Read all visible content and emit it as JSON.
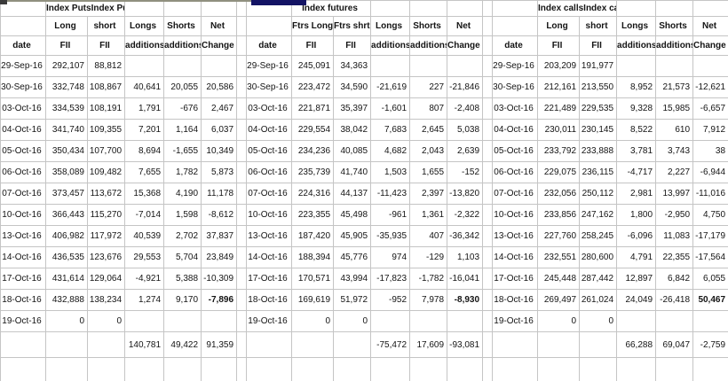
{
  "styles": {
    "header_blue": "#1c1cc4",
    "negative_red": "#e23333",
    "bold_negative_red": "#cc0000",
    "bold_positive_blue": "#1c1cc4",
    "grid_line": "#c5c5c5",
    "navy_bar": "#131364"
  },
  "groups": [
    {
      "id": "index-puts",
      "title": "Index PutsIndex Puts",
      "header_row1": [
        "",
        "Long",
        "short",
        "Longs",
        "Shorts",
        "Net"
      ],
      "header_row2": [
        "date",
        "FII",
        "FII",
        "additions",
        "additions",
        "Change"
      ],
      "rows": [
        [
          "29-Sep-16",
          "292,107",
          "88,812",
          "",
          "",
          ""
        ],
        [
          "30-Sep-16",
          "332,748",
          "108,867",
          "40,641",
          "20,055",
          "20,586"
        ],
        [
          "03-Oct-16",
          "334,539",
          "108,191",
          "1,791",
          "-676",
          "2,467"
        ],
        [
          "04-Oct-16",
          "341,740",
          "109,355",
          "7,201",
          "1,164",
          "6,037"
        ],
        [
          "05-Oct-16",
          "350,434",
          "107,700",
          "8,694",
          "-1,655",
          "10,349"
        ],
        [
          "06-Oct-16",
          "358,089",
          "109,482",
          "7,655",
          "1,782",
          "5,873"
        ],
        [
          "07-Oct-16",
          "373,457",
          "113,672",
          "15,368",
          "4,190",
          "11,178"
        ],
        [
          "10-Oct-16",
          "366,443",
          "115,270",
          "-7,014",
          "1,598",
          "-8,612"
        ],
        [
          "13-Oct-16",
          "406,982",
          "117,972",
          "40,539",
          "2,702",
          "37,837"
        ],
        [
          "14-Oct-16",
          "436,535",
          "123,676",
          "29,553",
          "5,704",
          "23,849"
        ],
        [
          "17-Oct-16",
          "431,614",
          "129,064",
          "-4,921",
          "5,388",
          "-10,309"
        ],
        [
          "18-Oct-16",
          "432,888",
          "138,234",
          "1,274",
          "9,170",
          "-7,896"
        ],
        [
          "19-Oct-16",
          "0",
          "0",
          "",
          "",
          ""
        ]
      ],
      "emphasis": [
        {
          "row": 11,
          "col": 5
        }
      ],
      "totals": [
        "140,781",
        "49,422",
        "91,359"
      ]
    },
    {
      "id": "index-futures",
      "title": "Index futures",
      "header_row1": [
        "",
        "Ftrs Long",
        "Ftrs shrt",
        "Longs",
        "Shorts",
        "Net"
      ],
      "header_row2": [
        "date",
        "FII",
        "FII",
        "additions",
        "additions",
        "Change"
      ],
      "rows": [
        [
          "29-Sep-16",
          "245,091",
          "34,363",
          "",
          "",
          ""
        ],
        [
          "30-Sep-16",
          "223,472",
          "34,590",
          "-21,619",
          "227",
          "-21,846"
        ],
        [
          "03-Oct-16",
          "221,871",
          "35,397",
          "-1,601",
          "807",
          "-2,408"
        ],
        [
          "04-Oct-16",
          "229,554",
          "38,042",
          "7,683",
          "2,645",
          "5,038"
        ],
        [
          "05-Oct-16",
          "234,236",
          "40,085",
          "4,682",
          "2,043",
          "2,639"
        ],
        [
          "06-Oct-16",
          "235,739",
          "41,740",
          "1,503",
          "1,655",
          "-152"
        ],
        [
          "07-Oct-16",
          "224,316",
          "44,137",
          "-11,423",
          "2,397",
          "-13,820"
        ],
        [
          "10-Oct-16",
          "223,355",
          "45,498",
          "-961",
          "1,361",
          "-2,322"
        ],
        [
          "13-Oct-16",
          "187,420",
          "45,905",
          "-35,935",
          "407",
          "-36,342"
        ],
        [
          "14-Oct-16",
          "188,394",
          "45,776",
          "974",
          "-129",
          "1,103"
        ],
        [
          "17-Oct-16",
          "170,571",
          "43,994",
          "-17,823",
          "-1,782",
          "-16,041"
        ],
        [
          "18-Oct-16",
          "169,619",
          "51,972",
          "-952",
          "7,978",
          "-8,930"
        ],
        [
          "19-Oct-16",
          "0",
          "0",
          "",
          "",
          ""
        ]
      ],
      "emphasis": [
        {
          "row": 11,
          "col": 5
        }
      ],
      "totals": [
        "-75,472",
        "17,609",
        "-93,081"
      ]
    },
    {
      "id": "index-calls",
      "title": "Index callsIndex calls",
      "header_row1": [
        "",
        "Long",
        "short",
        "Longs",
        "Shorts",
        "Net"
      ],
      "header_row2": [
        "date",
        "FII",
        "FII",
        "additions",
        "additions",
        "Change"
      ],
      "rows": [
        [
          "29-Sep-16",
          "203,209",
          "191,977",
          "",
          "",
          ""
        ],
        [
          "30-Sep-16",
          "212,161",
          "213,550",
          "8,952",
          "21,573",
          "-12,621"
        ],
        [
          "03-Oct-16",
          "221,489",
          "229,535",
          "9,328",
          "15,985",
          "-6,657"
        ],
        [
          "04-Oct-16",
          "230,011",
          "230,145",
          "8,522",
          "610",
          "7,912"
        ],
        [
          "05-Oct-16",
          "233,792",
          "233,888",
          "3,781",
          "3,743",
          "38"
        ],
        [
          "06-Oct-16",
          "229,075",
          "236,115",
          "-4,717",
          "2,227",
          "-6,944"
        ],
        [
          "07-Oct-16",
          "232,056",
          "250,112",
          "2,981",
          "13,997",
          "-11,016"
        ],
        [
          "10-Oct-16",
          "233,856",
          "247,162",
          "1,800",
          "-2,950",
          "4,750"
        ],
        [
          "13-Oct-16",
          "227,760",
          "258,245",
          "-6,096",
          "11,083",
          "-17,179"
        ],
        [
          "14-Oct-16",
          "232,551",
          "280,600",
          "4,791",
          "22,355",
          "-17,564"
        ],
        [
          "17-Oct-16",
          "245,448",
          "287,442",
          "12,897",
          "6,842",
          "6,055"
        ],
        [
          "18-Oct-16",
          "269,497",
          "261,024",
          "24,049",
          "-26,418",
          "50,467"
        ],
        [
          "19-Oct-16",
          "0",
          "0",
          "",
          "",
          ""
        ]
      ],
      "emphasis": [
        {
          "row": 11,
          "col": 5
        }
      ],
      "totals": [
        "66,288",
        "69,047",
        "-2,759"
      ]
    }
  ]
}
